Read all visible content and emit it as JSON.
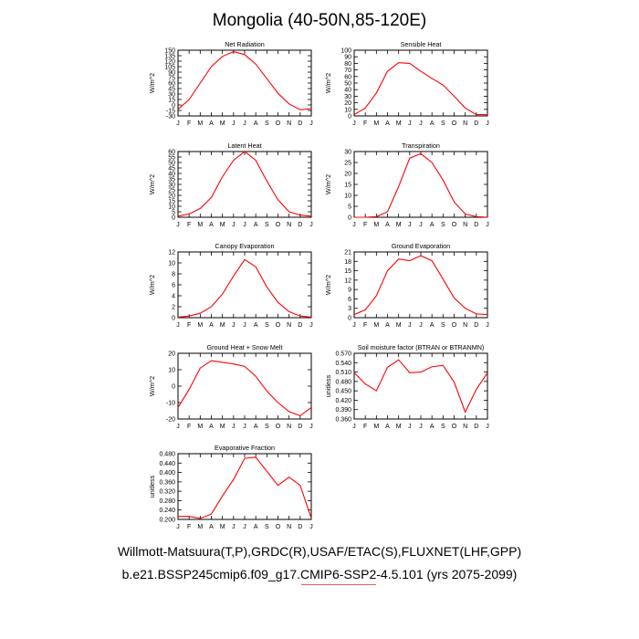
{
  "page": {
    "title": "Mongolia (40-50N,85-120E)",
    "footer_line1": "Willmott-Matsuura(T,P),GRDC(R),USAF/ETAC(S),FLUXNET(LHF,GPP)",
    "footer_line2": "b.e21.BSSP245cmip6.f09_g17.CMIP6-SSP2-4.5.101 (yrs 2075-2099)"
  },
  "colors": {
    "line": "#ff0000",
    "axis": "#000000"
  },
  "chart_data": [
    {
      "type": "line",
      "title": "Net Radiation",
      "ylabel": "W/m^2",
      "x": [
        "J",
        "F",
        "M",
        "A",
        "M",
        "J",
        "J",
        "A",
        "S",
        "O",
        "N",
        "D",
        "J"
      ],
      "ylim": [
        -30,
        150
      ],
      "yticks": [
        -30,
        -15,
        0,
        15,
        30,
        45,
        60,
        75,
        90,
        105,
        120,
        135,
        150
      ],
      "series": [
        {
          "values": [
            -12,
            15,
            60,
            105,
            133,
            146,
            138,
            112,
            72,
            32,
            3,
            -13,
            -10
          ]
        }
      ]
    },
    {
      "type": "line",
      "title": "Sensible Heat",
      "ylabel": "W/m^2",
      "x": [
        "J",
        "F",
        "M",
        "A",
        "M",
        "J",
        "J",
        "A",
        "S",
        "O",
        "N",
        "D",
        "J"
      ],
      "ylim": [
        0,
        100
      ],
      "yticks": [
        0,
        10,
        20,
        30,
        40,
        50,
        60,
        70,
        80,
        90,
        100
      ],
      "series": [
        {
          "values": [
            2,
            12,
            35,
            68,
            81,
            80,
            68,
            57,
            47,
            30,
            12,
            2,
            2
          ]
        }
      ]
    },
    {
      "type": "line",
      "title": "Latent Heat",
      "ylabel": "W/m^2",
      "x": [
        "J",
        "F",
        "M",
        "A",
        "M",
        "J",
        "J",
        "A",
        "S",
        "O",
        "N",
        "D",
        "J"
      ],
      "ylim": [
        0,
        60
      ],
      "yticks": [
        0,
        5,
        10,
        15,
        20,
        25,
        30,
        35,
        40,
        45,
        50,
        55,
        60
      ],
      "series": [
        {
          "values": [
            1,
            3,
            8,
            18,
            37,
            52,
            60,
            52,
            33,
            16,
            5,
            2,
            1
          ]
        }
      ]
    },
    {
      "type": "line",
      "title": "Transpiration",
      "ylabel": "W/m^2",
      "x": [
        "J",
        "F",
        "M",
        "A",
        "M",
        "J",
        "J",
        "A",
        "S",
        "O",
        "N",
        "D",
        "J"
      ],
      "ylim": [
        0,
        30
      ],
      "yticks": [
        0,
        5,
        10,
        15,
        20,
        25,
        30
      ],
      "series": [
        {
          "values": [
            0,
            0,
            0.3,
            2.5,
            14,
            27,
            29,
            25,
            17,
            7,
            1.5,
            0.3,
            0
          ]
        }
      ]
    },
    {
      "type": "line",
      "title": "Canopy Evaporation",
      "ylabel": "W/m^2",
      "x": [
        "J",
        "F",
        "M",
        "A",
        "M",
        "J",
        "J",
        "A",
        "S",
        "O",
        "N",
        "D",
        "J"
      ],
      "ylim": [
        0,
        12
      ],
      "yticks": [
        0,
        2,
        4,
        6,
        8,
        10,
        12
      ],
      "series": [
        {
          "values": [
            0.1,
            0.3,
            0.8,
            2,
            4.3,
            7.6,
            10.6,
            9.3,
            5.6,
            2.8,
            1.1,
            0.3,
            0.1
          ]
        }
      ]
    },
    {
      "type": "line",
      "title": "Ground Evaporation",
      "ylabel": "W/m^2",
      "x": [
        "J",
        "F",
        "M",
        "A",
        "M",
        "J",
        "J",
        "A",
        "S",
        "O",
        "N",
        "D",
        "J"
      ],
      "ylim": [
        0,
        21
      ],
      "yticks": [
        0,
        3,
        6,
        9,
        12,
        15,
        18,
        21
      ],
      "series": [
        {
          "values": [
            1,
            2.5,
            7,
            15,
            18.7,
            18.2,
            19.8,
            18.2,
            12.3,
            6.3,
            3,
            1.2,
            1
          ]
        }
      ]
    },
    {
      "type": "line",
      "title": "Ground Heat + Snow Melt",
      "ylabel": "W/m^2",
      "x": [
        "J",
        "F",
        "M",
        "A",
        "M",
        "J",
        "J",
        "A",
        "S",
        "O",
        "N",
        "D",
        "J"
      ],
      "ylim": [
        -20,
        20
      ],
      "yticks": [
        -20,
        -10,
        0,
        10,
        20
      ],
      "series": [
        {
          "values": [
            -13,
            -2,
            11,
            15.5,
            14.5,
            13.5,
            12,
            6,
            -3,
            -10,
            -15.5,
            -18,
            -13
          ]
        }
      ]
    },
    {
      "type": "line",
      "title": "Soil moisture factor (BTRAN or BTRANMN)",
      "ylabel": "unitless",
      "x": [
        "J",
        "F",
        "M",
        "A",
        "M",
        "J",
        "J",
        "A",
        "S",
        "O",
        "N",
        "D",
        "J"
      ],
      "ylim": [
        0.36,
        0.57
      ],
      "yticks": [
        0.36,
        0.39,
        0.42,
        0.45,
        0.48,
        0.51,
        0.54,
        0.57
      ],
      "ytick_labels": [
        "0.360",
        "0.390",
        "0.420",
        "0.450",
        "0.480",
        "0.510",
        "0.540",
        "0.570"
      ],
      "series": [
        {
          "values": [
            0.508,
            0.472,
            0.45,
            0.525,
            0.549,
            0.508,
            0.51,
            0.527,
            0.531,
            0.478,
            0.382,
            0.455,
            0.508
          ]
        }
      ]
    },
    {
      "type": "line",
      "title": "Evaporative Fraction",
      "ylabel": "unitless",
      "x": [
        "J",
        "F",
        "M",
        "A",
        "M",
        "J",
        "J",
        "A",
        "S",
        "O",
        "N",
        "D",
        "J"
      ],
      "ylim": [
        0.2,
        0.48
      ],
      "yticks": [
        0.2,
        0.24,
        0.28,
        0.32,
        0.36,
        0.4,
        0.44,
        0.48
      ],
      "ytick_labels": [
        "0.200",
        "0.240",
        "0.280",
        "0.320",
        "0.360",
        "0.400",
        "0.440",
        "0.480"
      ],
      "series": [
        {
          "values": [
            0.213,
            0.213,
            0.204,
            0.223,
            0.3,
            0.37,
            0.46,
            0.465,
            0.405,
            0.345,
            0.38,
            0.345,
            0.205
          ]
        }
      ]
    }
  ]
}
